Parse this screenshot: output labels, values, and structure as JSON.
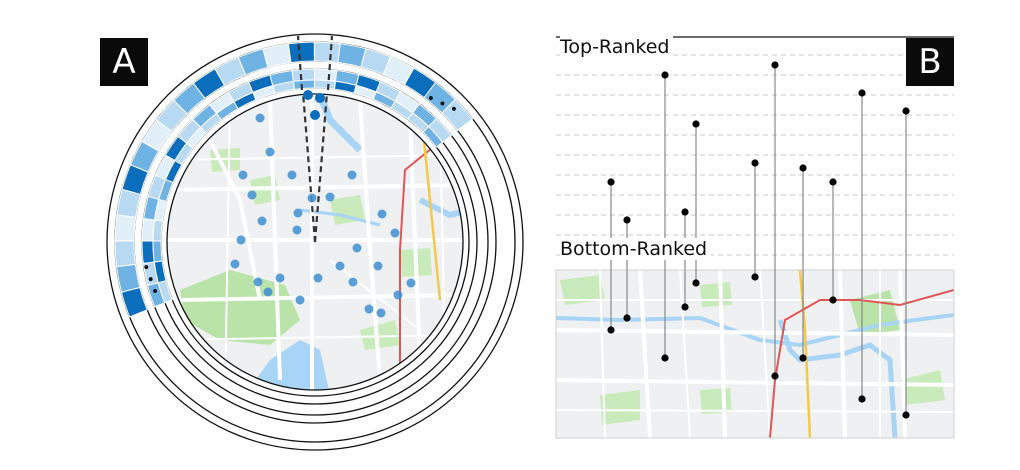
{
  "panel_a": {
    "badge": "A",
    "ellipsis_top": "• • •",
    "ellipsis_left": "• • •"
  },
  "panel_b": {
    "badge": "B",
    "top_label": "Top-Ranked",
    "bottom_label": "Bottom-Ranked"
  },
  "colors": {
    "dark_blue": "#0a6ebd",
    "mid_blue": "#6fb2e4",
    "light_blue": "#b8d9f2",
    "pale_blue": "#e1eff9",
    "map_bg": "#eef0f2",
    "map_green": "#b9e3a8",
    "map_water": "#a8d4f5",
    "map_road_red": "#e05555",
    "map_road_yellow": "#f3c94b",
    "marker_blue": "#3f8fd3"
  }
}
